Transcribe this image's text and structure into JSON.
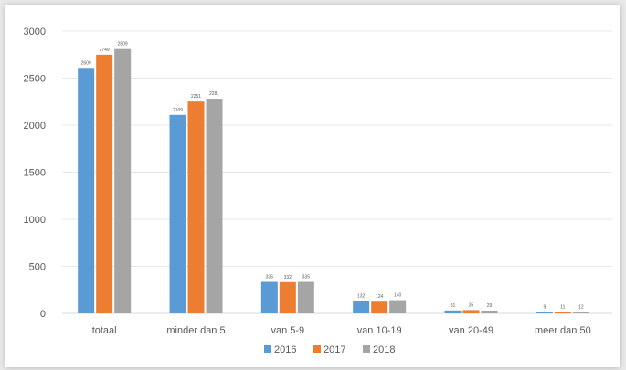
{
  "chart_data": {
    "type": "bar",
    "categories": [
      "totaal",
      "minder dan 5",
      "van 5-9",
      "van 10-19",
      "van 20-49",
      "meer dan 50"
    ],
    "series": [
      {
        "name": "2016",
        "color": "#5b9bd5",
        "values": [
          2609,
          2109,
          335,
          132,
          31,
          9
        ]
      },
      {
        "name": "2017",
        "color": "#ed7d31",
        "values": [
          2749,
          2251,
          332,
          124,
          35,
          11
        ]
      },
      {
        "name": "2018",
        "color": "#a5a5a5",
        "values": [
          2809,
          2281,
          335,
          140,
          29,
          12
        ]
      }
    ],
    "ylim": [
      0,
      3000
    ],
    "yticks": [
      0,
      500,
      1000,
      1500,
      2000,
      2500,
      3000
    ],
    "grid": true,
    "legend": "bottom"
  }
}
